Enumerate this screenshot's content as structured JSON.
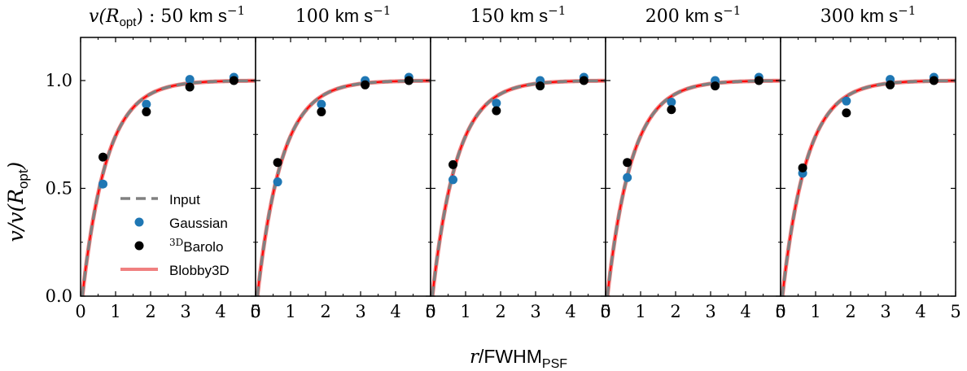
{
  "chart_data": {
    "type": "scatter",
    "panel_titles": [
      "v(R_opt) : 50 km s^-1",
      "100 km s^-1",
      "150 km s^-1",
      "200 km s^-1",
      "300 km s^-1"
    ],
    "xlabel": "r/FWHM_PSF",
    "ylabel": "v/v(R_opt)",
    "xlim": [
      0,
      5
    ],
    "ylim": [
      0,
      1.2
    ],
    "x_ticks": [
      0,
      1,
      2,
      3,
      4,
      5
    ],
    "y_ticks": [
      "0.0",
      "0.5",
      "1.0"
    ],
    "legend": {
      "placement": "lower-left of first panel",
      "entries": [
        {
          "label": "Input",
          "style": "dashed-line",
          "color": "#808080"
        },
        {
          "label": "Gaussian",
          "style": "point",
          "color": "#1f77b4"
        },
        {
          "label": "3D Barolo",
          "style": "point",
          "color": "#000000"
        },
        {
          "label": "Blobby3D",
          "style": "line",
          "color": "#f08080"
        }
      ]
    },
    "model_curve": "v = 1 - exp(-r/0.7) for r >= 0.05 (Input, Blobby3D)",
    "panels": [
      {
        "title": "v(R_opt) : 50 km s^-1",
        "gaussian": [
          [
            0.64,
            0.52
          ],
          [
            1.88,
            0.89
          ],
          [
            3.12,
            1.005
          ],
          [
            4.38,
            1.015
          ]
        ],
        "barolo": [
          [
            0.64,
            0.645
          ],
          [
            1.88,
            0.855
          ],
          [
            3.12,
            0.97
          ],
          [
            4.38,
            1.0
          ]
        ]
      },
      {
        "title": "100 km s^-1",
        "gaussian": [
          [
            0.63,
            0.53
          ],
          [
            1.88,
            0.89
          ],
          [
            3.13,
            1.0
          ],
          [
            4.38,
            1.015
          ]
        ],
        "barolo": [
          [
            0.63,
            0.62
          ],
          [
            1.88,
            0.855
          ],
          [
            3.13,
            0.98
          ],
          [
            4.38,
            1.0
          ]
        ]
      },
      {
        "title": "150 km s^-1",
        "gaussian": [
          [
            0.64,
            0.54
          ],
          [
            1.88,
            0.895
          ],
          [
            3.13,
            1.0
          ],
          [
            4.38,
            1.015
          ]
        ],
        "barolo": [
          [
            0.64,
            0.61
          ],
          [
            1.88,
            0.86
          ],
          [
            3.13,
            0.975
          ],
          [
            4.38,
            1.0
          ]
        ]
      },
      {
        "title": "200 km s^-1",
        "gaussian": [
          [
            0.62,
            0.55
          ],
          [
            1.88,
            0.9
          ],
          [
            3.13,
            1.0
          ],
          [
            4.38,
            1.015
          ]
        ],
        "barolo": [
          [
            0.62,
            0.62
          ],
          [
            1.88,
            0.865
          ],
          [
            3.13,
            0.975
          ],
          [
            4.38,
            1.0
          ]
        ]
      },
      {
        "title": "300 km s^-1",
        "gaussian": [
          [
            0.63,
            0.57
          ],
          [
            1.88,
            0.905
          ],
          [
            3.13,
            1.005
          ],
          [
            4.38,
            1.015
          ]
        ],
        "barolo": [
          [
            0.63,
            0.595
          ],
          [
            1.88,
            0.85
          ],
          [
            3.13,
            0.98
          ],
          [
            4.38,
            1.0
          ]
        ]
      }
    ]
  }
}
